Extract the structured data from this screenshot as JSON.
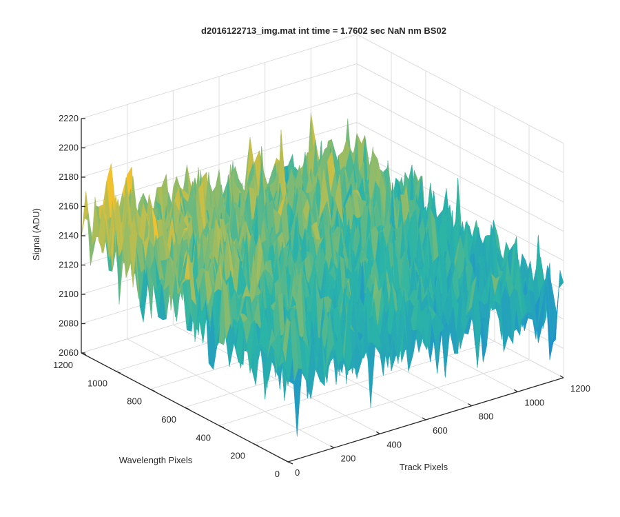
{
  "chart_data": {
    "type": "surface",
    "title": "d2016122713_img.mat int time = 1.7602 sec  NaN nm BS02",
    "xlabel": "Track Pixels",
    "ylabel": "Wavelength Pixels",
    "zlabel": "Signal (ADU)",
    "xlim": [
      0,
      1200
    ],
    "ylim": [
      0,
      1200
    ],
    "zlim": [
      2060,
      2220
    ],
    "x_ticks": [
      "0",
      "200",
      "400",
      "600",
      "800",
      "1000",
      "1200"
    ],
    "y_ticks": [
      "0",
      "200",
      "400",
      "600",
      "800",
      "1000",
      "1200"
    ],
    "z_ticks": [
      "2060",
      "2080",
      "2100",
      "2120",
      "2140",
      "2160",
      "2180",
      "2200",
      "2220"
    ],
    "grid": true,
    "colormap": "parula",
    "colors": {
      "low": "#1f8fd0",
      "mid": "#2bb5a6",
      "high": "#f2c12e"
    },
    "surface_summary": {
      "mean_signal": 2130,
      "noise_range": [
        2075,
        2205
      ],
      "note_x": "signal decreases slightly toward high track pixels",
      "corner_values": {
        "x0_y0": 2120,
        "x1200_y0": 2112,
        "x0_y1200": 2148,
        "x1200_y1200": 2135
      }
    }
  }
}
